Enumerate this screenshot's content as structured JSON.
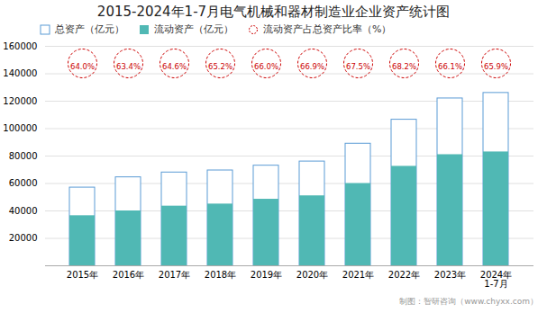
{
  "chart_data": {
    "type": "bar",
    "title": "2015-2024年1-7月电气机械和器材制造业企业资产统计图",
    "categories": [
      "2015年",
      "2016年",
      "2017年",
      "2018年",
      "2019年",
      "2020年",
      "2021年",
      "2022年",
      "2023年",
      "2024年\n1-7月"
    ],
    "series": [
      {
        "name": "总资产（亿元）",
        "color": "#5b9bd5",
        "values": [
          57000,
          64500,
          68000,
          69500,
          73000,
          76000,
          89000,
          106500,
          122000,
          126000
        ]
      },
      {
        "name": "流动资产（亿元）",
        "color": "#50b8b4",
        "values": [
          36500,
          40000,
          43500,
          45000,
          48500,
          51000,
          60000,
          72500,
          81000,
          83000
        ]
      },
      {
        "name": "流动资产占总资产比率（%）",
        "type": "text",
        "color": "#cc0000",
        "marker": "circle",
        "line_style": "dashed",
        "values": [
          64.0,
          63.4,
          64.6,
          65.2,
          66.0,
          66.9,
          67.5,
          68.2,
          66.1,
          65.9
        ],
        "value_labels": [
          "64.0%",
          "63.4%",
          "64.6%",
          "65.2%",
          "66.0%",
          "66.9%",
          "67.5%",
          "68.2%",
          "66.1%",
          "65.9%"
        ]
      }
    ],
    "ylim": [
      0,
      160000
    ],
    "yticks": [
      20000,
      40000,
      60000,
      80000,
      100000,
      120000,
      140000,
      160000
    ],
    "grid": true,
    "legend": "top left",
    "annotations": [
      "制图：智研咨询（www.chyxx.com）"
    ]
  }
}
